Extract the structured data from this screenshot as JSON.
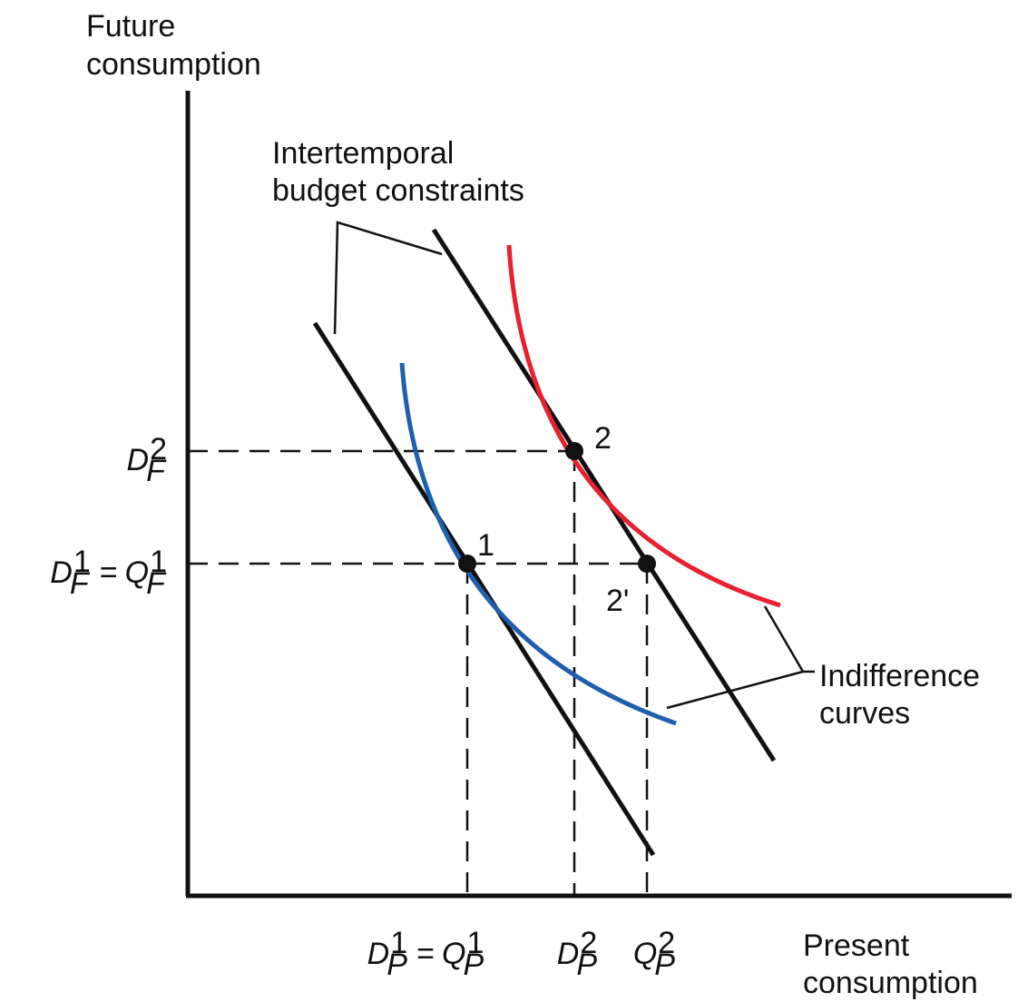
{
  "axes": {
    "y_label": [
      "Future",
      "consumption"
    ],
    "x_label": [
      "Present",
      "consumption"
    ]
  },
  "annotations": {
    "budget": [
      "Intertemporal",
      "budget constraints"
    ],
    "indifference": [
      "Indifference",
      "curves"
    ]
  },
  "points": [
    {
      "label": "1"
    },
    {
      "label": "2"
    },
    {
      "label": "2'"
    }
  ],
  "y_ticks": [
    {
      "terms": [
        {
          "letter": "D",
          "sup": "2",
          "sub": "F"
        }
      ]
    },
    {
      "terms": [
        {
          "letter": "D",
          "sup": "1",
          "sub": "F"
        },
        {
          "letter": "Q",
          "sup": "1",
          "sub": "F"
        }
      ],
      "relation": "="
    }
  ],
  "x_ticks": [
    {
      "terms": [
        {
          "letter": "D",
          "sup": "1",
          "sub": "P"
        },
        {
          "letter": "Q",
          "sup": "1",
          "sub": "P"
        }
      ],
      "relation": "="
    },
    {
      "terms": [
        {
          "letter": "D",
          "sup": "2",
          "sub": "P"
        }
      ]
    },
    {
      "terms": [
        {
          "letter": "Q",
          "sup": "2",
          "sub": "P"
        }
      ]
    }
  ]
}
